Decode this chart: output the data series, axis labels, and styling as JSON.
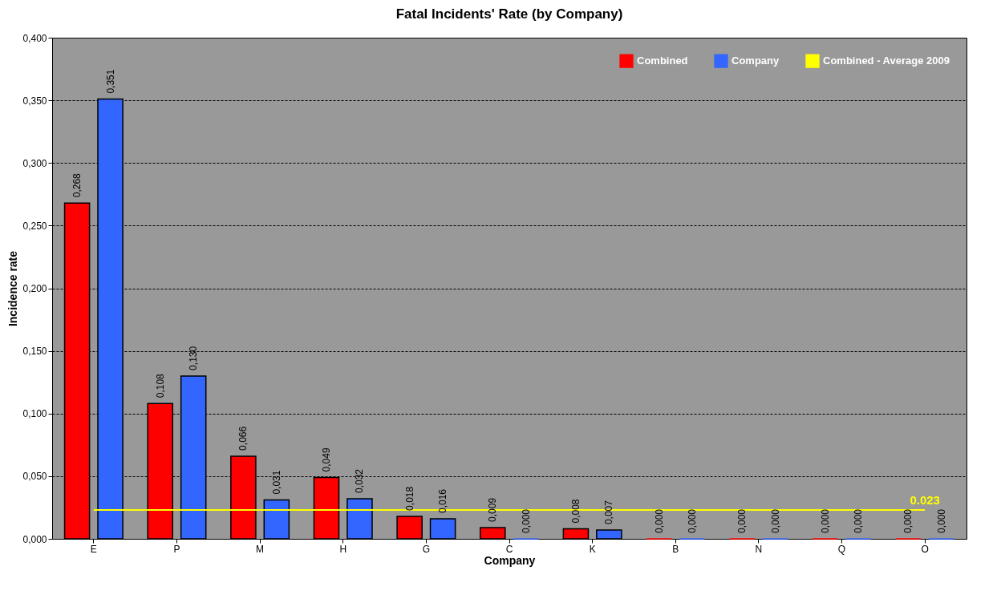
{
  "chart_data": {
    "type": "bar",
    "title": "Fatal Incidents' Rate (by Company)",
    "xlabel": "Company",
    "ylabel": "Incidence rate",
    "categories": [
      "E",
      "P",
      "M",
      "H",
      "G",
      "C",
      "K",
      "B",
      "N",
      "Q",
      "O"
    ],
    "series": [
      {
        "name": "Combined",
        "color": "#ff0000",
        "values": [
          0.268,
          0.108,
          0.066,
          0.049,
          0.018,
          0.009,
          0.008,
          0,
          0,
          0,
          0
        ],
        "value_labels": [
          "0,268",
          "0,108",
          "0,066",
          "0,049",
          "0,018",
          "0,009",
          "0,008",
          "0,000",
          "0,000",
          "0,000",
          "0,000"
        ]
      },
      {
        "name": "Company",
        "color": "#3366ff",
        "values": [
          0.351,
          0.13,
          0.031,
          0.032,
          0.016,
          0,
          0.007,
          0,
          0,
          0,
          0
        ],
        "value_labels": [
          "0,351",
          "0,130",
          "0,031",
          "0,032",
          "0,016",
          "0,000",
          "0,007",
          "0,000",
          "0,000",
          "0,000",
          "0,000"
        ]
      },
      {
        "name": "Combined - Average 2009",
        "type": "line",
        "color": "#ffff00",
        "values": [
          0.023,
          0.023,
          0.023,
          0.023,
          0.023,
          0.023,
          0.023,
          0.023,
          0.023,
          0.023,
          0.023
        ]
      }
    ],
    "annotations": [
      {
        "text": "0.023",
        "x": "O",
        "y": 0.023
      }
    ],
    "ylim": [
      0,
      0.4
    ],
    "yticks": [
      {
        "value": 0,
        "label": "0,000"
      },
      {
        "value": 0.05,
        "label": "0,050"
      },
      {
        "value": 0.1,
        "label": "0,100"
      },
      {
        "value": 0.15,
        "label": "0,150"
      },
      {
        "value": 0.2,
        "label": "0,200"
      },
      {
        "value": 0.25,
        "label": "0,250"
      },
      {
        "value": 0.3,
        "label": "0,300"
      },
      {
        "value": 0.35,
        "label": "0,350"
      },
      {
        "value": 0.4,
        "label": "0,400"
      }
    ],
    "grid": "y",
    "legend": "top right"
  }
}
